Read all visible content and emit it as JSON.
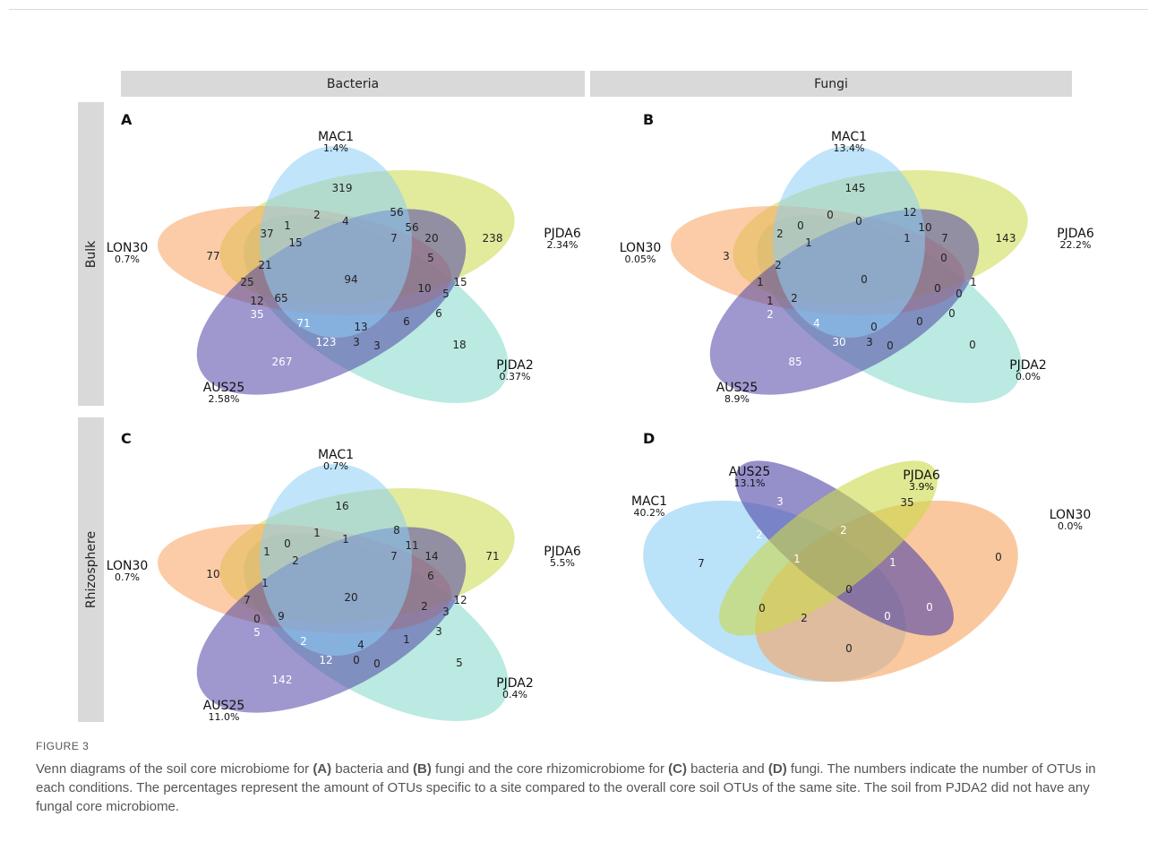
{
  "columns": [
    "Bacteria",
    "Fungi"
  ],
  "rows": [
    "Bulk",
    "Rhizosphere"
  ],
  "colors": {
    "MAC1": "#8ccef5",
    "PJDA6": "#cbd94a",
    "PJDA2": "#82d8c8",
    "AUS25": "#4e44a6",
    "LON30": "#f7a35f",
    "header_bg": "#d9d9d9"
  },
  "panels": [
    {
      "letter": "A",
      "type": "venn5",
      "sets": [
        {
          "name": "MAC1",
          "pct": "1.4%"
        },
        {
          "name": "PJDA6",
          "pct": "2.34%"
        },
        {
          "name": "PJDA2",
          "pct": "0.37%"
        },
        {
          "name": "AUS25",
          "pct": "2.58%"
        },
        {
          "name": "LON30",
          "pct": "0.7%"
        }
      ],
      "values": [
        "319",
        "238",
        "18",
        "267",
        "77",
        "94",
        "2",
        "4",
        "56",
        "56",
        "20",
        "7",
        "15",
        "37",
        "1",
        "21",
        "25",
        "12",
        "65",
        "35",
        "71",
        "123",
        "13",
        "3",
        "3",
        "6",
        "6",
        "10",
        "5",
        "5",
        "15"
      ]
    },
    {
      "letter": "B",
      "type": "venn5",
      "sets": [
        {
          "name": "MAC1",
          "pct": "13.4%"
        },
        {
          "name": "PJDA6",
          "pct": "22.2%"
        },
        {
          "name": "PJDA2",
          "pct": "0.0%"
        },
        {
          "name": "AUS25",
          "pct": "8.9%"
        },
        {
          "name": "LON30",
          "pct": "0.05%"
        }
      ],
      "values": [
        "145",
        "143",
        "0",
        "85",
        "3",
        "0",
        "0",
        "0",
        "12",
        "10",
        "7",
        "1",
        "1",
        "2",
        "0",
        "2",
        "1",
        "1",
        "2",
        "2",
        "4",
        "30",
        "0",
        "3",
        "0",
        "0",
        "0",
        "0",
        "0",
        "0",
        "1"
      ]
    },
    {
      "letter": "C",
      "type": "venn5",
      "sets": [
        {
          "name": "MAC1",
          "pct": "0.7%"
        },
        {
          "name": "PJDA6",
          "pct": "5.5%"
        },
        {
          "name": "PJDA2",
          "pct": "0.4%"
        },
        {
          "name": "AUS25",
          "pct": "11.0%"
        },
        {
          "name": "LON30",
          "pct": "0.7%"
        }
      ],
      "values": [
        "16",
        "71",
        "5",
        "142",
        "10",
        "20",
        "1",
        "1",
        "8",
        "11",
        "14",
        "7",
        "2",
        "1",
        "0",
        "1",
        "7",
        "0",
        "9",
        "5",
        "2",
        "12",
        "4",
        "0",
        "0",
        "1",
        "3",
        "2",
        "3",
        "6",
        "12"
      ]
    },
    {
      "letter": "D",
      "type": "venn4",
      "sets": [
        {
          "name": "MAC1",
          "pct": "40.2%"
        },
        {
          "name": "AUS25",
          "pct": "13.1%"
        },
        {
          "name": "PJDA6",
          "pct": "3.9%"
        },
        {
          "name": "LON30",
          "pct": "0.0%"
        }
      ],
      "values": [
        "7",
        "3",
        "35",
        "0",
        "2",
        "2",
        "0",
        "1",
        "1",
        "2",
        "0",
        "0",
        "0",
        "0",
        "0"
      ]
    }
  ],
  "caption": {
    "label": "FIGURE 3",
    "segments": [
      {
        "t": "Venn diagrams of the soil core microbiome for ",
        "b": false
      },
      {
        "t": "(A)",
        "b": true
      },
      {
        "t": " bacteria and ",
        "b": false
      },
      {
        "t": "(B)",
        "b": true
      },
      {
        "t": " fungi and the core rhizomicrobiome for ",
        "b": false
      },
      {
        "t": "(C)",
        "b": true
      },
      {
        "t": " bacteria and ",
        "b": false
      },
      {
        "t": "(D)",
        "b": true
      },
      {
        "t": " fungi. The numbers indicate the number of OTUs in each conditions. The percentages represent the amount of OTUs specific to a site compared to the overall core soil OTUs of the same site. The soil from PJDA2 did not have any fungal core microbiome.",
        "b": false
      }
    ]
  }
}
